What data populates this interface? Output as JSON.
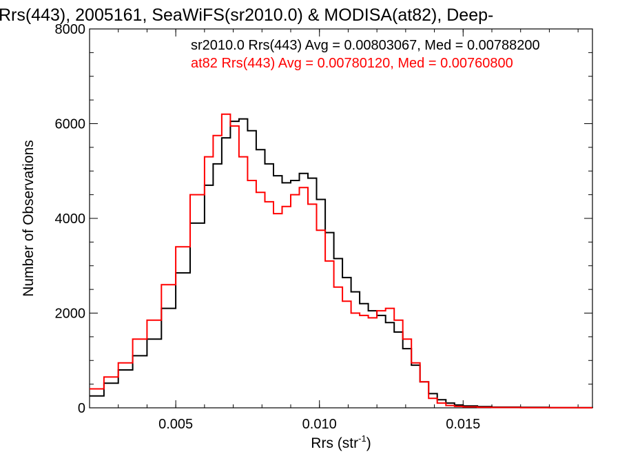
{
  "chart_data": {
    "type": "line",
    "title": "Rrs(443), 2005161, SeaWiFS(sr2010.0) & MODISA(at82), Deep-",
    "xlabel": "Rrs (str",
    "xlabel_sup": "-1",
    "xlabel_suffix": ")",
    "ylabel": "Number of Observations",
    "xlim": [
      0.002,
      0.0195
    ],
    "ylim": [
      0,
      8000
    ],
    "x_ticks": [
      0.005,
      0.01,
      0.015
    ],
    "x_tick_labels": [
      "0.005",
      "0.010",
      "0.015"
    ],
    "y_ticks": [
      0,
      2000,
      4000,
      6000,
      8000
    ],
    "y_tick_labels": [
      "0",
      "2000",
      "4000",
      "6000",
      "8000"
    ],
    "grid": false,
    "legend_position": "top-right",
    "series": [
      {
        "name": "sr2010.0 Rrs(443) Avg = 0.00803067, Med = 0.00788200",
        "color": "#000000",
        "style": "step",
        "x": [
          0.002,
          0.0025,
          0.003,
          0.0035,
          0.004,
          0.0045,
          0.005,
          0.0055,
          0.006,
          0.0063,
          0.0066,
          0.0069,
          0.0072,
          0.0075,
          0.0078,
          0.0081,
          0.0084,
          0.0087,
          0.009,
          0.0093,
          0.0096,
          0.0099,
          0.0102,
          0.0105,
          0.0108,
          0.0111,
          0.0114,
          0.0117,
          0.012,
          0.0123,
          0.0126,
          0.0129,
          0.0132,
          0.0135,
          0.0138,
          0.0141,
          0.0144,
          0.0147,
          0.015,
          0.0155,
          0.016,
          0.017,
          0.018,
          0.019,
          0.0195
        ],
        "y": [
          250,
          520,
          800,
          1100,
          1450,
          2100,
          2850,
          3900,
          4700,
          5150,
          5700,
          6050,
          6100,
          5850,
          5450,
          5150,
          4900,
          4750,
          4800,
          4950,
          4850,
          4400,
          3700,
          3150,
          2750,
          2450,
          2200,
          2050,
          1950,
          1800,
          1600,
          1250,
          900,
          550,
          300,
          170,
          100,
          60,
          40,
          25,
          15,
          10,
          5,
          3,
          2
        ]
      },
      {
        "name": "at82 Rrs(443) Avg = 0.00780120, Med = 0.00760800",
        "color": "#ff0000",
        "style": "step",
        "x": [
          0.002,
          0.0025,
          0.003,
          0.0035,
          0.004,
          0.0045,
          0.005,
          0.0055,
          0.006,
          0.0063,
          0.0066,
          0.0069,
          0.0072,
          0.0075,
          0.0078,
          0.0081,
          0.0084,
          0.0087,
          0.009,
          0.0093,
          0.0096,
          0.0099,
          0.0102,
          0.0105,
          0.0108,
          0.0111,
          0.0114,
          0.0117,
          0.012,
          0.0123,
          0.0126,
          0.0129,
          0.0132,
          0.0135,
          0.0138,
          0.0141,
          0.0144,
          0.0147,
          0.015,
          0.0155,
          0.016,
          0.017,
          0.018,
          0.019,
          0.0195
        ],
        "y": [
          400,
          650,
          950,
          1450,
          1850,
          2600,
          3400,
          4500,
          5300,
          5750,
          6200,
          5950,
          5300,
          4800,
          4550,
          4350,
          4100,
          4250,
          4500,
          4650,
          4300,
          3750,
          3100,
          2550,
          2250,
          2000,
          1950,
          1900,
          2050,
          2100,
          1850,
          1450,
          950,
          550,
          200,
          100,
          50,
          30,
          20,
          12,
          8,
          5,
          3,
          2,
          1
        ]
      }
    ]
  }
}
